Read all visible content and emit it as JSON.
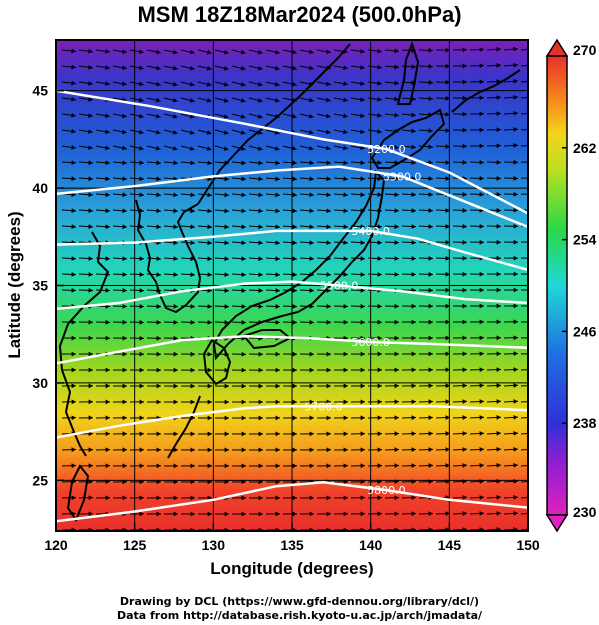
{
  "title": "MSM 18Z18Mar2024 (500.0hPa)",
  "x_axis": {
    "label": "Longitude (degrees)",
    "range": [
      120,
      150
    ],
    "ticks": [
      120,
      125,
      130,
      135,
      140,
      145,
      150
    ]
  },
  "y_axis": {
    "label": "Latitude  (degrees)",
    "range": [
      22.4,
      47.6
    ],
    "ticks": [
      25,
      30,
      35,
      40,
      45
    ]
  },
  "colorbar": {
    "range": [
      230,
      270
    ],
    "ticks": [
      230,
      238,
      246,
      254,
      262,
      270
    ],
    "end_arrows": true
  },
  "contours": [
    {
      "label": "5200.0",
      "points": [
        [
          120,
          45
        ],
        [
          126,
          44.2
        ],
        [
          132,
          43.3
        ],
        [
          137,
          42.5
        ],
        [
          141,
          42.0
        ],
        [
          145,
          40.8
        ],
        [
          150,
          38.7
        ]
      ]
    },
    {
      "label": "5300.0",
      "points": [
        [
          120,
          39.7
        ],
        [
          125,
          40.1
        ],
        [
          130,
          40.6
        ],
        [
          134,
          40.9
        ],
        [
          138,
          41.1
        ],
        [
          142,
          40.6
        ],
        [
          146,
          39.3
        ],
        [
          150,
          38.0
        ]
      ]
    },
    {
      "label": "5400.0",
      "points": [
        [
          120,
          37.1
        ],
        [
          125,
          37.2
        ],
        [
          130,
          37.5
        ],
        [
          134,
          37.8
        ],
        [
          137,
          37.8
        ],
        [
          140,
          37.8
        ],
        [
          143,
          37.4
        ],
        [
          146,
          36.7
        ],
        [
          150,
          35.8
        ]
      ]
    },
    {
      "label": "5500.0",
      "points": [
        [
          120,
          33.8
        ],
        [
          124,
          34.1
        ],
        [
          128,
          34.7
        ],
        [
          132,
          35.1
        ],
        [
          135,
          35.2
        ],
        [
          138,
          35.0
        ],
        [
          142,
          34.7
        ],
        [
          146,
          34.3
        ],
        [
          150,
          34.1
        ]
      ]
    },
    {
      "label": "5600.0",
      "points": [
        [
          120,
          31.0
        ],
        [
          124,
          31.6
        ],
        [
          128,
          32.2
        ],
        [
          132,
          32.4
        ],
        [
          136,
          32.3
        ],
        [
          140,
          32.1
        ],
        [
          144,
          32.0
        ],
        [
          150,
          31.8
        ]
      ]
    },
    {
      "label": "5700.0",
      "points": [
        [
          120,
          27.2
        ],
        [
          124,
          27.8
        ],
        [
          128,
          28.3
        ],
        [
          132,
          28.7
        ],
        [
          134,
          28.8
        ],
        [
          137,
          28.8
        ],
        [
          140,
          28.8
        ],
        [
          144,
          28.8
        ],
        [
          150,
          28.6
        ]
      ]
    },
    {
      "label": "5800.0",
      "points": [
        [
          120,
          22.9
        ],
        [
          125,
          23.4
        ],
        [
          130,
          24.0
        ],
        [
          134,
          24.7
        ],
        [
          137,
          24.9
        ],
        [
          141,
          24.5
        ],
        [
          145,
          24.0
        ],
        [
          150,
          23.6
        ]
      ]
    }
  ],
  "colors": {
    "frame": "#000000",
    "contour": "#ffffff",
    "coast": "#000000"
  },
  "credit_line1": "Drawing by DCL (https://www.gfd-dennou.org/library/dcl/)",
  "credit_line2": "Data from http://database.rish.kyoto-u.ac.jp/arch/jmadata/"
}
